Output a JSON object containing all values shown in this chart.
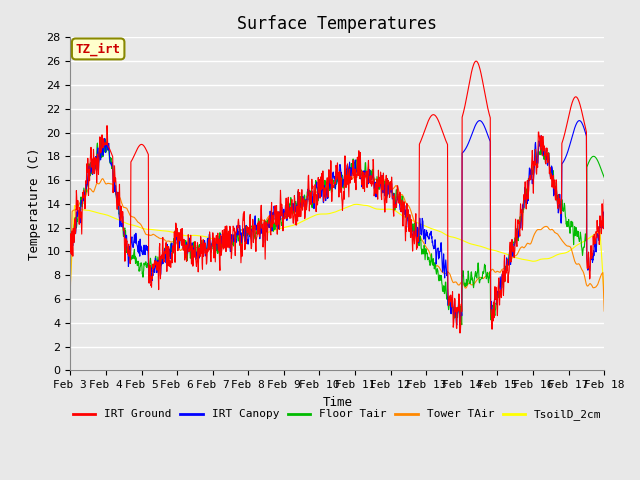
{
  "title": "Surface Temperatures",
  "xlabel": "Time",
  "ylabel": "Temperature (C)",
  "ylim": [
    0,
    28
  ],
  "yticks": [
    0,
    2,
    4,
    6,
    8,
    10,
    12,
    14,
    16,
    18,
    20,
    22,
    24,
    26,
    28
  ],
  "xtick_labels": [
    "Feb 3",
    "Feb 4",
    "Feb 5",
    "Feb 6",
    "Feb 7",
    "Feb 8",
    "Feb 9",
    "Feb 10",
    "Feb 11",
    "Feb 12",
    "Feb 13",
    "Feb 14",
    "Feb 15",
    "Feb 16",
    "Feb 17",
    "Feb 18"
  ],
  "series_colors": {
    "IRT Ground": "#ff0000",
    "IRT Canopy": "#0000ff",
    "Floor Tair": "#00bb00",
    "Tower TAir": "#ff8800",
    "TsoilD_2cm": "#ffff00"
  },
  "legend_labels": [
    "IRT Ground",
    "IRT Canopy",
    "Floor Tair",
    "Tower TAir",
    "TsoilD_2cm"
  ],
  "annotation_text": "TZ_irt",
  "annotation_color": "#cc0000",
  "annotation_bg": "#ffffcc",
  "annotation_border": "#888800",
  "bg_color": "#e8e8e8",
  "plot_bg": "#e8e8e8",
  "grid_color": "#ffffff",
  "title_fontsize": 12,
  "axis_fontsize": 9,
  "tick_fontsize": 8
}
